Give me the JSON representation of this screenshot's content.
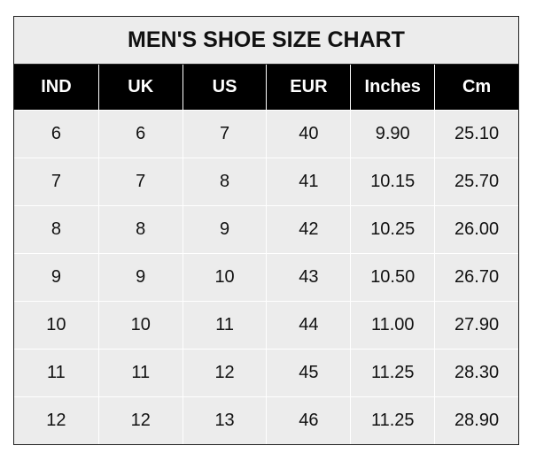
{
  "title": "MEN'S SHOE SIZE CHART",
  "headers": [
    "IND",
    "UK",
    "US",
    "EUR",
    "Inches",
    "Cm"
  ],
  "rows": [
    [
      "6",
      "6",
      "7",
      "40",
      "9.90",
      "25.10"
    ],
    [
      "7",
      "7",
      "8",
      "41",
      "10.15",
      "25.70"
    ],
    [
      "8",
      "8",
      "9",
      "42",
      "10.25",
      "26.00"
    ],
    [
      "9",
      "9",
      "10",
      "43",
      "10.50",
      "26.70"
    ],
    [
      "10",
      "10",
      "11",
      "44",
      "11.00",
      "27.90"
    ],
    [
      "11",
      "11",
      "12",
      "45",
      "11.25",
      "28.30"
    ],
    [
      "12",
      "12",
      "13",
      "46",
      "11.25",
      "28.90"
    ]
  ],
  "colors": {
    "header_bg": "#000000",
    "body_bg": "#ececec",
    "grid": "#ffffff"
  }
}
